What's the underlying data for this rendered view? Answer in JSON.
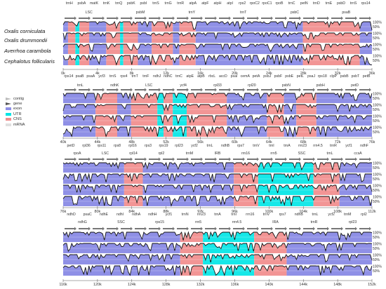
{
  "species": [
    "Oxalis corniculata",
    "Oxalis drummondii",
    "Averrhoa carambola",
    "Cephalotus follicularis"
  ],
  "legend": [
    {
      "label": "contig",
      "color": "#bdbdbd",
      "kind": "arrow"
    },
    {
      "label": "gene",
      "color": "#5a5a5a",
      "kind": "arrow"
    },
    {
      "label": "exon",
      "color": "#8f90e6",
      "kind": "box"
    },
    {
      "label": "UTR",
      "color": "#00e5e5",
      "kind": "box"
    },
    {
      "label": "CNS",
      "color": "#ef8f8f",
      "kind": "box"
    },
    {
      "label": "mRNA",
      "color": "#e0e0e0",
      "kind": "box"
    }
  ],
  "colors": {
    "exon": "#8f90e6",
    "utr": "#16e8e8",
    "cns": "#f29595",
    "white": "#ffffff",
    "trace": "#111111"
  },
  "percent_labels": [
    "100%",
    "50%"
  ],
  "panels": [
    {
      "start": 0,
      "end": 38,
      "ticks": [
        "0k",
        "4k",
        "8k",
        "12k",
        "16k",
        "20k",
        "24k",
        "28k",
        "32k",
        "36k"
      ],
      "genes_top": [
        "trnH",
        "psbA",
        "matK",
        "trnK",
        "trnQ",
        "psbK",
        "psbI",
        "trnS",
        "trnG",
        "trnR",
        "atpA",
        "atpF",
        "atpH",
        "atpI",
        "rps2",
        "rpoC2",
        "rpoC1",
        "rpoB",
        "trnC",
        "petN",
        "trnD",
        "trnE",
        "psbD",
        "trnS",
        "rps14"
      ],
      "genes_bottom": [
        "LSC",
        "psbM",
        "trnY",
        "trnT",
        "psbC",
        "psaB"
      ],
      "segments": [
        [
          "exon",
          0,
          0.6
        ],
        [
          "cns",
          0.6,
          1.5
        ],
        [
          "utr",
          1.5,
          2.0
        ],
        [
          "cns",
          2.0,
          3.2
        ],
        [
          "exon",
          3.2,
          5.3
        ],
        [
          "cns",
          5.3,
          7.0
        ],
        [
          "utr",
          7.0,
          7.4
        ],
        [
          "cns",
          7.4,
          9.2
        ],
        [
          "exon",
          9.2,
          10.9
        ],
        [
          "cns",
          10.9,
          13.5
        ],
        [
          "exon",
          13.5,
          14.3
        ],
        [
          "cns",
          14.3,
          16.3
        ],
        [
          "exon",
          16.3,
          29.5
        ],
        [
          "cns",
          29.5,
          36.5
        ],
        [
          "exon",
          36.5,
          38
        ]
      ]
    },
    {
      "start": 36,
      "end": 76,
      "ticks": [
        "40k",
        "44k",
        "48k",
        "52k",
        "56k",
        "60k",
        "64k",
        "68k",
        "72k",
        "76k"
      ],
      "genes_top": [
        "rps14",
        "psaB",
        "psaA",
        "ycf3",
        "trnS",
        "rps4",
        "trnT",
        "trnF",
        "ndhJ",
        "ndhC",
        "trnC",
        "atpE",
        "atpB",
        "rbcL",
        "accD",
        "psaI",
        "cemA",
        "petA",
        "psbJ",
        "psbF",
        "psbE",
        "petL",
        "psaJ",
        "rps18",
        "clpP",
        "psbB",
        "psbT",
        "petB"
      ],
      "genes_bottom": [
        "trnL",
        "ndhK",
        "LSC",
        "ycf4",
        "rpl33",
        "rpl20",
        "psbN",
        "psbH",
        "petD"
      ],
      "segments": [
        [
          "exon",
          36,
          40.2
        ],
        [
          "cns",
          40.2,
          43.0
        ],
        [
          "exon",
          43.0,
          44.8
        ],
        [
          "cns",
          44.8,
          48.2
        ],
        [
          "utr",
          48.2,
          49.0
        ],
        [
          "cns",
          49.0,
          50.2
        ],
        [
          "utr",
          50.2,
          52.0
        ],
        [
          "cns",
          52.0,
          57.2
        ],
        [
          "exon",
          57.2,
          62.4
        ],
        [
          "cns",
          62.4,
          64.6
        ],
        [
          "exon",
          64.6,
          66.2
        ],
        [
          "cns",
          66.2,
          68.8
        ],
        [
          "exon",
          68.8,
          76
        ]
      ]
    },
    {
      "start": 76,
      "end": 114,
      "ticks": [
        "76k",
        "80k",
        "84k",
        "88k",
        "92k",
        "96k",
        "100k",
        "104k",
        "108k",
        "112k"
      ],
      "genes_top": [
        "petD",
        "rpl36",
        "rps11",
        "rps8",
        "rpl16",
        "rps3",
        "rps19",
        "rpl23",
        "ycf2",
        "trnL",
        "ndhB",
        "rps7",
        "trnV",
        "trnI",
        "trnA",
        "rrn23",
        "rrn4.5",
        "trnR",
        "ycf1",
        "ndhF"
      ],
      "genes_bottom": [
        "rpoA",
        "LSC",
        "rpl14",
        "rpl2",
        "trnM",
        "IRB",
        "rrn16",
        "rrn5",
        "SSC",
        "trnL",
        "ccsA"
      ],
      "segments": [
        [
          "exon",
          76,
          83.5
        ],
        [
          "cns",
          83.5,
          85.8
        ],
        [
          "exon",
          85.8,
          97.0
        ],
        [
          "cns",
          97.0,
          100.0
        ],
        [
          "utr",
          100.0,
          106.8
        ],
        [
          "cns",
          106.8,
          110.0
        ],
        [
          "exon",
          110.0,
          114
        ]
      ]
    },
    {
      "start": 114,
      "end": 152,
      "ticks": [
        "116k",
        "120k",
        "124k",
        "128k",
        "132k",
        "136k",
        "140k",
        "144k",
        "148k",
        "152k"
      ],
      "genes_top": [
        "ndhD",
        "psaC",
        "ndhE",
        "ndhI",
        "ndhA",
        "ndhH",
        "ycf1",
        "trnN",
        "rrn23",
        "trnA",
        "trnI",
        "rrn16",
        "trnV",
        "rps7",
        "ndhB",
        "trnL",
        "ycf2",
        "trnM",
        "rpl2"
      ],
      "genes_bottom": [
        "ndhG",
        "SSC",
        "rps15",
        "rrn5",
        "rrn4.5",
        "IRA",
        "trnR",
        "rpl23"
      ],
      "segments": [
        [
          "exon",
          114,
          128.4
        ],
        [
          "cns",
          128.4,
          131.2
        ],
        [
          "utr",
          131.2,
          137.5
        ],
        [
          "cns",
          137.5,
          141.5
        ],
        [
          "exon",
          141.5,
          152
        ]
      ]
    }
  ]
}
